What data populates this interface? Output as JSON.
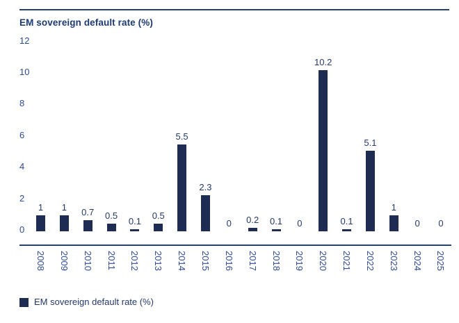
{
  "page": {
    "title": "EM sovereign default rate (%)"
  },
  "colors": {
    "bar": "#1e2c54",
    "title": "#1c3a74",
    "tick_label": "#2d4a96",
    "data_label": "#24386b",
    "axis_line": "#24406f",
    "background": "#ffffff"
  },
  "chart_data": {
    "type": "bar",
    "title": "EM sovereign default rate (%)",
    "categories": [
      "2008",
      "2009",
      "2010",
      "2011",
      "2012",
      "2013",
      "2014",
      "2015",
      "2016",
      "2017",
      "2018",
      "2019",
      "2020",
      "2021",
      "2022",
      "2023",
      "2024",
      "2025"
    ],
    "values": [
      1,
      1,
      0.7,
      0.5,
      0.1,
      0.5,
      5.5,
      2.3,
      0,
      0.2,
      0.1,
      0,
      10.2,
      0.1,
      5.1,
      1,
      0,
      0
    ],
    "data_labels": [
      "1",
      "1",
      "0.7",
      "0.5",
      "0.1",
      "0.5",
      "5.5",
      "2.3",
      "0",
      "0.2",
      "0.1",
      "0",
      "10.2",
      "0.1",
      "5.1",
      "1",
      "0",
      "0"
    ],
    "xlabel": "",
    "ylabel": "",
    "ylim": [
      0,
      12
    ],
    "y_ticks": [
      0,
      2,
      4,
      6,
      8,
      10,
      12
    ],
    "grid": false,
    "x_tick_rotation": 90,
    "legend": [
      "EM sovereign default rate (%)"
    ],
    "legend_position": "bottom-left"
  }
}
